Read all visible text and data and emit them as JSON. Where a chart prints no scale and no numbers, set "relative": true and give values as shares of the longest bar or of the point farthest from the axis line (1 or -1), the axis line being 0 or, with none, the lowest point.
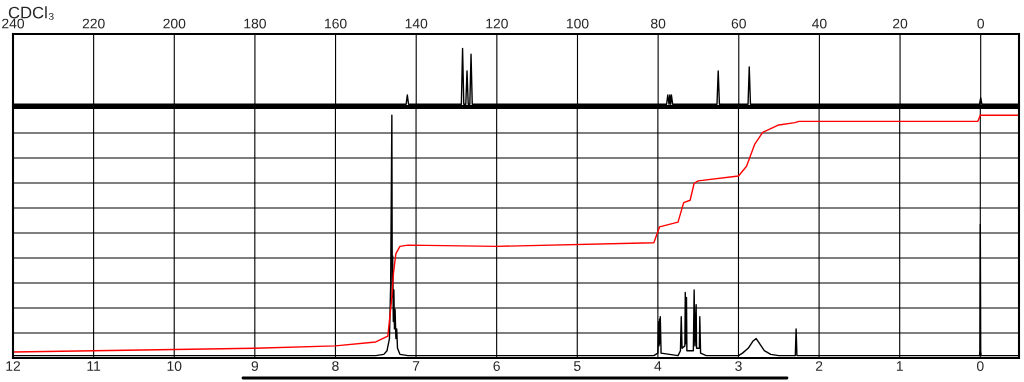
{
  "chart_data": [
    {
      "type": "line",
      "relative": true,
      "grid": "x",
      "annotations": [
        "CDCl₃"
      ],
      "xlim": [
        240,
        -9.5
      ],
      "xticks": [
        240,
        220,
        200,
        180,
        160,
        140,
        120,
        100,
        80,
        60,
        40,
        20,
        0
      ],
      "series": [
        {
          "color": "#000000",
          "x": [
            240,
            142.5,
            142.2,
            141.9,
            128.8,
            128.5,
            128.2,
            127.7,
            127.4,
            127.1,
            126.7,
            126.4,
            126.1,
            77.9,
            77.6,
            77.3,
            77.1,
            76.9,
            76.7,
            76.4,
            65.4,
            65.1,
            64.8,
            57.7,
            57.4,
            57.1,
            0.3,
            0,
            -0.3,
            -9.5
          ],
          "values": [
            0.03,
            0.03,
            0.19,
            0.03,
            0.03,
            1.0,
            0.03,
            0.03,
            0.61,
            0.03,
            0.03,
            0.9,
            0.03,
            0.03,
            0.19,
            0.03,
            0.19,
            0.03,
            0.19,
            0.03,
            0.03,
            0.61,
            0.03,
            0.03,
            0.68,
            0.03,
            0.03,
            0.14,
            0.03,
            0.03
          ]
        }
      ]
    },
    {
      "type": "line",
      "relative": true,
      "grid": true,
      "xlim": [
        12,
        -0.48
      ],
      "xticks": [
        12,
        11,
        10,
        9,
        8,
        7,
        6,
        5,
        4,
        3,
        2,
        1,
        0
      ],
      "series": [
        {
          "color": "#000000",
          "x": [
            12,
            7.5,
            7.4,
            7.36,
            7.33,
            7.315,
            7.3,
            7.295,
            7.29,
            7.282,
            7.275,
            7.268,
            7.26,
            7.25,
            7.24,
            7.23,
            7.2,
            7.1,
            4.05,
            4.0,
            3.99,
            3.985,
            3.98,
            3.975,
            3.97,
            3.96,
            3.75,
            3.72,
            3.71,
            3.7,
            3.665,
            3.66,
            3.655,
            3.645,
            3.64,
            3.56,
            3.55,
            3.54,
            3.525,
            3.52,
            3.485,
            3.48,
            3.47,
            3.4,
            3.0,
            2.95,
            2.88,
            2.82,
            2.78,
            2.74,
            2.68,
            2.6,
            2.5,
            2.295,
            2.285,
            2.275,
            0.01,
            0.005,
            0.0,
            -0.005,
            -0.01,
            -0.48
          ],
          "values": [
            0.01,
            0.01,
            0.015,
            0.03,
            0.08,
            0.3,
            1.0,
            0.25,
            0.42,
            0.15,
            0.28,
            0.12,
            0.2,
            0.08,
            0.12,
            0.04,
            0.015,
            0.01,
            0.01,
            0.02,
            0.15,
            0.05,
            0.16,
            0.06,
            0.17,
            0.02,
            0.01,
            0.03,
            0.17,
            0.04,
            0.05,
            0.27,
            0.06,
            0.25,
            0.03,
            0.03,
            0.28,
            0.05,
            0.22,
            0.04,
            0.04,
            0.17,
            0.02,
            0.01,
            0.01,
            0.02,
            0.04,
            0.07,
            0.08,
            0.06,
            0.03,
            0.015,
            0.01,
            0.01,
            0.12,
            0.01,
            0.01,
            0.03,
            0.55,
            0.03,
            0.01,
            0.01
          ]
        },
        {
          "color": "#ff0000",
          "x": [
            12,
            9,
            8,
            7.5,
            7.35,
            7.3,
            7.28,
            7.25,
            7.2,
            7.1,
            6,
            4.05,
            3.98,
            3.75,
            3.68,
            3.6,
            3.55,
            3.5,
            3.0,
            2.9,
            2.8,
            2.7,
            2.5,
            2.3,
            2.25,
            0.03,
            0,
            -0.48
          ],
          "values": [
            0.025,
            0.04,
            0.05,
            0.066,
            0.09,
            0.25,
            0.35,
            0.43,
            0.46,
            0.465,
            0.46,
            0.475,
            0.54,
            0.56,
            0.64,
            0.65,
            0.72,
            0.73,
            0.75,
            0.79,
            0.88,
            0.93,
            0.96,
            0.97,
            0.975,
            0.975,
            1.0,
            1.0
          ]
        }
      ]
    }
  ]
}
